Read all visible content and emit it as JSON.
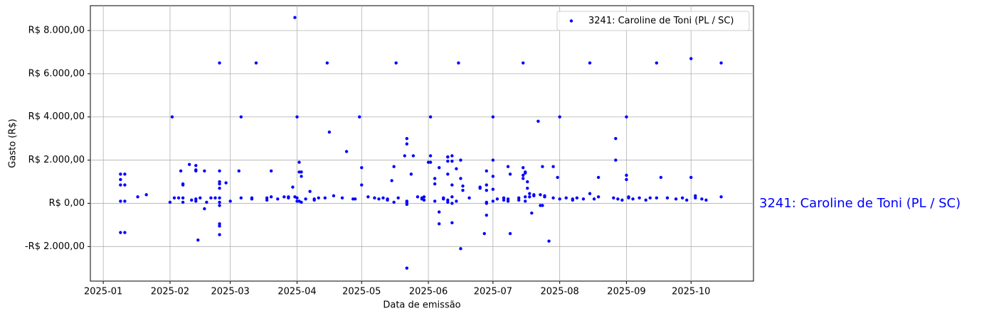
{
  "chart_data": {
    "type": "scatter",
    "xlabel": "Data de emissão",
    "ylabel": "Gasto (R$)",
    "annotation": "3241: Caroline de Toni (PL / SC)",
    "legend": "upper right",
    "grid": true,
    "xlim": [
      "2024-12-26",
      "2025-10-30"
    ],
    "xticks": [
      "2025-01",
      "2025-02",
      "2025-03",
      "2025-04",
      "2025-05",
      "2025-06",
      "2025-07",
      "2025-08",
      "2025-09",
      "2025-10"
    ],
    "ylim": [
      -3600,
      9150
    ],
    "yticks": [
      {
        "value": -2000,
        "label": "-R$ 2.000,00"
      },
      {
        "value": 0,
        "label": "R$ 0,00"
      },
      {
        "value": 2000,
        "label": "R$ 2.000,00"
      },
      {
        "value": 4000,
        "label": "R$ 4.000,00"
      },
      {
        "value": 6000,
        "label": "R$ 6.000,00"
      },
      {
        "value": 8000,
        "label": "R$ 8.000,00"
      }
    ],
    "series": [
      {
        "name": "3241: Caroline de Toni (PL / SC)",
        "color": "#0000ff",
        "x": [
          "2025-01-09",
          "2025-01-09",
          "2025-01-09",
          "2025-01-09",
          "2025-01-09",
          "2025-01-11",
          "2025-01-11",
          "2025-01-11",
          "2025-01-11",
          "2025-01-17",
          "2025-01-21",
          "2025-02-01",
          "2025-02-02",
          "2025-02-03",
          "2025-02-05",
          "2025-02-06",
          "2025-02-07",
          "2025-02-07",
          "2025-02-07",
          "2025-02-07",
          "2025-02-10",
          "2025-02-11",
          "2025-02-13",
          "2025-02-13",
          "2025-02-13",
          "2025-02-13",
          "2025-02-13",
          "2025-02-14",
          "2025-02-15",
          "2025-02-17",
          "2025-02-17",
          "2025-02-18",
          "2025-02-20",
          "2025-02-22",
          "2025-02-24",
          "2025-02-24",
          "2025-02-24",
          "2025-02-24",
          "2025-02-24",
          "2025-02-24",
          "2025-02-24",
          "2025-02-24",
          "2025-02-24",
          "2025-02-24",
          "2025-02-24",
          "2025-02-27",
          "2025-03-01",
          "2025-03-05",
          "2025-03-06",
          "2025-03-06",
          "2025-03-11",
          "2025-03-11",
          "2025-03-13",
          "2025-03-18",
          "2025-03-18",
          "2025-03-20",
          "2025-03-20",
          "2025-03-23",
          "2025-03-26",
          "2025-03-28",
          "2025-03-28",
          "2025-03-30",
          "2025-03-31",
          "2025-03-31",
          "2025-04-01",
          "2025-04-01",
          "2025-04-01",
          "2025-04-02",
          "2025-04-02",
          "2025-04-02",
          "2025-04-03",
          "2025-04-03",
          "2025-04-03",
          "2025-04-05",
          "2025-04-07",
          "2025-04-09",
          "2025-04-09",
          "2025-04-11",
          "2025-04-14",
          "2025-04-15",
          "2025-04-16",
          "2025-04-18",
          "2025-04-22",
          "2025-04-24",
          "2025-04-27",
          "2025-04-28",
          "2025-04-30",
          "2025-05-01",
          "2025-05-01",
          "2025-05-04",
          "2025-05-07",
          "2025-05-09",
          "2025-05-11",
          "2025-05-13",
          "2025-05-13",
          "2025-05-15",
          "2025-05-16",
          "2025-05-16",
          "2025-05-17",
          "2025-05-18",
          "2025-05-21",
          "2025-05-22",
          "2025-05-22",
          "2025-05-22",
          "2025-05-22",
          "2025-05-22",
          "2025-05-22",
          "2025-05-24",
          "2025-05-25",
          "2025-05-27",
          "2025-05-29",
          "2025-05-29",
          "2025-05-30",
          "2025-05-30",
          "2025-06-01",
          "2025-06-02",
          "2025-06-02",
          "2025-06-02",
          "2025-06-04",
          "2025-06-04",
          "2025-06-04",
          "2025-06-06",
          "2025-06-06",
          "2025-06-06",
          "2025-06-08",
          "2025-06-08",
          "2025-06-10",
          "2025-06-10",
          "2025-06-10",
          "2025-06-10",
          "2025-06-10",
          "2025-06-10",
          "2025-06-12",
          "2025-06-12",
          "2025-06-12",
          "2025-06-12",
          "2025-06-12",
          "2025-06-12",
          "2025-06-14",
          "2025-06-14",
          "2025-06-15",
          "2025-06-16",
          "2025-06-16",
          "2025-06-16",
          "2025-06-17",
          "2025-06-17",
          "2025-06-20",
          "2025-06-25",
          "2025-06-25",
          "2025-06-27",
          "2025-06-28",
          "2025-06-28",
          "2025-06-28",
          "2025-06-28",
          "2025-06-28",
          "2025-06-28",
          "2025-07-01",
          "2025-07-01",
          "2025-07-01",
          "2025-07-01",
          "2025-07-01",
          "2025-07-03",
          "2025-07-06",
          "2025-07-06",
          "2025-07-08",
          "2025-07-08",
          "2025-07-08",
          "2025-07-09",
          "2025-07-09",
          "2025-07-13",
          "2025-07-13",
          "2025-07-15",
          "2025-07-15",
          "2025-07-15",
          "2025-07-15",
          "2025-07-16",
          "2025-07-16",
          "2025-07-16",
          "2025-07-16",
          "2025-07-17",
          "2025-07-17",
          "2025-07-18",
          "2025-07-18",
          "2025-07-19",
          "2025-07-20",
          "2025-07-20",
          "2025-07-22",
          "2025-07-23",
          "2025-07-23",
          "2025-07-24",
          "2025-07-24",
          "2025-07-25",
          "2025-07-25",
          "2025-07-27",
          "2025-07-29",
          "2025-07-29",
          "2025-07-31",
          "2025-08-01",
          "2025-08-01",
          "2025-08-04",
          "2025-08-07",
          "2025-08-07",
          "2025-08-09",
          "2025-08-12",
          "2025-08-15",
          "2025-08-15",
          "2025-08-17",
          "2025-08-19",
          "2025-08-19",
          "2025-08-26",
          "2025-08-27",
          "2025-08-27",
          "2025-08-28",
          "2025-08-30",
          "2025-09-01",
          "2025-09-01",
          "2025-09-01",
          "2025-09-02",
          "2025-09-02",
          "2025-09-04",
          "2025-09-07",
          "2025-09-10",
          "2025-09-12",
          "2025-09-15",
          "2025-09-15",
          "2025-09-17",
          "2025-09-20",
          "2025-09-24",
          "2025-09-27",
          "2025-09-29",
          "2025-10-01",
          "2025-10-01",
          "2025-10-03",
          "2025-10-03",
          "2025-10-06",
          "2025-10-08",
          "2025-10-15",
          "2025-10-15"
        ],
        "values": [
          1350,
          1100,
          850,
          100,
          -1350,
          1350,
          850,
          100,
          -1350,
          300,
          400,
          50,
          4000,
          250,
          250,
          1500,
          900,
          850,
          250,
          50,
          1800,
          150,
          1750,
          1550,
          1500,
          200,
          100,
          -1700,
          250,
          1500,
          -250,
          50,
          250,
          250,
          6500,
          1500,
          1000,
          900,
          700,
          250,
          50,
          -100,
          -950,
          -1050,
          -1450,
          950,
          100,
          1500,
          4000,
          250,
          250,
          200,
          6500,
          250,
          150,
          1500,
          300,
          200,
          300,
          250,
          300,
          750,
          8600,
          300,
          4000,
          250,
          100,
          1900,
          1450,
          100,
          1450,
          1250,
          50,
          200,
          550,
          200,
          150,
          250,
          250,
          6500,
          3300,
          350,
          250,
          2400,
          200,
          200,
          4000,
          1650,
          850,
          300,
          250,
          200,
          250,
          150,
          200,
          1050,
          1700,
          50,
          6500,
          250,
          2200,
          3000,
          2750,
          100,
          50,
          -50,
          -3000,
          1350,
          2200,
          300,
          250,
          200,
          300,
          150,
          1900,
          4000,
          2200,
          1900,
          1150,
          900,
          100,
          1650,
          -400,
          -950,
          250,
          200,
          2150,
          2150,
          1950,
          1350,
          50,
          150,
          2200,
          1950,
          850,
          300,
          0,
          -900,
          1600,
          100,
          6500,
          2000,
          1150,
          -2100,
          800,
          600,
          250,
          750,
          700,
          -1400,
          1500,
          850,
          600,
          0,
          50,
          -550,
          4000,
          2000,
          1250,
          650,
          100,
          200,
          250,
          150,
          1700,
          200,
          100,
          1350,
          -1400,
          150,
          250,
          6500,
          1650,
          1300,
          1150,
          1450,
          1400,
          300,
          100,
          1000,
          700,
          450,
          300,
          -450,
          400,
          350,
          3800,
          400,
          -100,
          1700,
          -100,
          350,
          300,
          -1750,
          1700,
          250,
          1200,
          4000,
          200,
          250,
          200,
          150,
          250,
          200,
          6500,
          450,
          200,
          1200,
          300,
          250,
          3000,
          2000,
          200,
          150,
          4000,
          1300,
          1100,
          300,
          250,
          200,
          250,
          150,
          250,
          6500,
          250,
          1200,
          250,
          200,
          250,
          150,
          6700,
          1200,
          350,
          250,
          200,
          150,
          6500,
          300
        ]
      }
    ]
  }
}
